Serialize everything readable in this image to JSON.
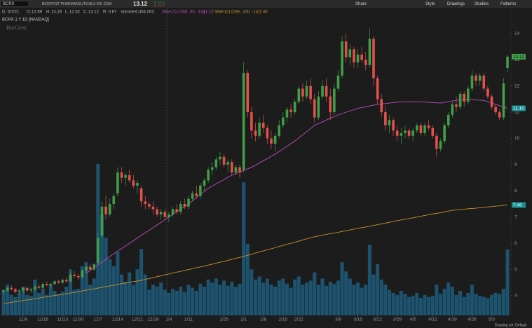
{
  "toolbar": {
    "symbol": "BCRX",
    "company": "BIOCRYST PHARMACEUTICALS INC COM",
    "bid": "B: 13.03",
    "ask": "A: 13.17",
    "buttons": [
      "Share",
      "Style",
      "Drawings",
      "Studies",
      "Patterns"
    ]
  },
  "info": {
    "date": "D: 5/7/21",
    "open_label": "O:",
    "high_label": "H:",
    "low_label": "L:",
    "close_label": "C:",
    "range": "R: 0.67",
    "volume": "6,454,063",
    "chart_label": "BCRX 1 Y 1D [NASDAQ]",
    "logo": "BioCrest",
    "drawing_set": "Drawing set: Default"
  },
  "chart_data": {
    "type": "candlestick",
    "up_color": "#3f9e47",
    "down_color": "#e2504c",
    "ylim": [
      3.25,
      14.96
    ],
    "yticks": [
      4,
      5,
      6,
      7,
      8,
      9,
      10,
      11,
      12,
      13,
      14
    ],
    "y2lim": [
      0,
      30000000
    ],
    "categories": [
      null,
      null,
      null,
      null,
      null,
      "11/9",
      null,
      null,
      null,
      null,
      "11/16",
      null,
      null,
      null,
      null,
      "11/23",
      null,
      null,
      null,
      "11/30",
      null,
      null,
      null,
      null,
      "12/7",
      null,
      null,
      null,
      null,
      "12/14",
      null,
      null,
      null,
      null,
      "12/21",
      null,
      null,
      null,
      "12/28",
      null,
      null,
      null,
      "1/4",
      null,
      null,
      null,
      null,
      "1/11",
      null,
      null,
      null,
      null,
      null,
      null,
      null,
      null,
      "1/25",
      null,
      null,
      null,
      null,
      "2/1",
      null,
      null,
      null,
      null,
      "2/8",
      null,
      null,
      null,
      null,
      "2/15",
      null,
      null,
      null,
      "2/22",
      null,
      null,
      null,
      null,
      null,
      null,
      null,
      null,
      null,
      "3/8",
      null,
      null,
      null,
      null,
      "3/15",
      null,
      null,
      null,
      null,
      "3/22",
      null,
      null,
      null,
      null,
      "3/29",
      null,
      null,
      null,
      "4/5",
      null,
      null,
      null,
      null,
      "4/12",
      null,
      null,
      null,
      null,
      "4/19",
      null,
      null,
      null,
      null,
      "4/26",
      null,
      null,
      null,
      null,
      "5/3",
      null,
      null,
      null,
      null
    ],
    "candles": [
      [
        4.15,
        4.25,
        4.05,
        4.2
      ],
      [
        4.2,
        4.35,
        4.15,
        4.3
      ],
      [
        4.3,
        4.4,
        4.2,
        4.25
      ],
      [
        4.25,
        4.3,
        4.1,
        4.15
      ],
      [
        4.15,
        4.25,
        4.05,
        4.2
      ],
      [
        4.2,
        4.35,
        4.1,
        4.3
      ],
      [
        4.3,
        4.35,
        4.15,
        4.2
      ],
      [
        4.2,
        4.3,
        4.1,
        4.25
      ],
      [
        4.25,
        4.4,
        4.2,
        4.35
      ],
      [
        4.35,
        4.45,
        4.25,
        4.3
      ],
      [
        4.3,
        4.5,
        4.25,
        4.45
      ],
      [
        4.45,
        4.55,
        4.35,
        4.4
      ],
      [
        4.4,
        4.5,
        4.3,
        4.45
      ],
      [
        4.45,
        4.6,
        4.4,
        4.55
      ],
      [
        4.55,
        4.6,
        4.45,
        4.5
      ],
      [
        4.5,
        4.65,
        4.45,
        4.6
      ],
      [
        4.6,
        4.7,
        4.5,
        4.55
      ],
      [
        4.55,
        4.9,
        4.5,
        4.8
      ],
      [
        4.8,
        4.95,
        4.7,
        4.75
      ],
      [
        4.75,
        4.85,
        4.6,
        4.7
      ],
      [
        4.7,
        5.0,
        4.65,
        4.95
      ],
      [
        4.95,
        5.15,
        4.85,
        5.1
      ],
      [
        5.1,
        5.2,
        4.95,
        5.0
      ],
      [
        5.0,
        5.25,
        4.95,
        5.2
      ],
      [
        5.25,
        6.4,
        5.2,
        6.2
      ],
      [
        6.3,
        7.6,
        6.2,
        7.4
      ],
      [
        7.4,
        7.8,
        6.9,
        7.1
      ],
      [
        7.1,
        7.7,
        7.0,
        7.5
      ],
      [
        7.5,
        7.9,
        7.3,
        7.8
      ],
      [
        7.9,
        8.9,
        7.8,
        8.7
      ],
      [
        8.7,
        8.9,
        8.3,
        8.5
      ],
      [
        8.5,
        8.7,
        8.2,
        8.6
      ],
      [
        8.6,
        8.8,
        8.3,
        8.4
      ],
      [
        8.4,
        8.6,
        8.1,
        8.2
      ],
      [
        8.2,
        8.4,
        7.9,
        8.3
      ],
      [
        8.1,
        8.2,
        7.4,
        7.6
      ],
      [
        7.6,
        7.8,
        7.3,
        7.5
      ],
      [
        7.5,
        7.6,
        7.3,
        7.4
      ],
      [
        7.4,
        7.6,
        7.1,
        7.3
      ],
      [
        7.3,
        7.4,
        7.0,
        7.1
      ],
      [
        7.1,
        7.3,
        6.9,
        7.2
      ],
      [
        7.2,
        7.3,
        6.95,
        7.0
      ],
      [
        7.0,
        7.2,
        6.8,
        7.1
      ],
      [
        7.1,
        7.4,
        7.0,
        7.3
      ],
      [
        7.3,
        7.5,
        7.1,
        7.2
      ],
      [
        7.2,
        7.6,
        7.1,
        7.5
      ],
      [
        7.5,
        7.7,
        7.3,
        7.4
      ],
      [
        7.4,
        7.8,
        7.3,
        7.7
      ],
      [
        7.7,
        8.0,
        7.6,
        7.9
      ],
      [
        7.9,
        8.2,
        7.7,
        7.8
      ],
      [
        7.8,
        8.3,
        7.7,
        8.2
      ],
      [
        8.2,
        8.5,
        8.0,
        8.4
      ],
      [
        8.4,
        8.9,
        8.3,
        8.8
      ],
      [
        8.8,
        9.1,
        8.6,
        8.9
      ],
      [
        8.9,
        9.3,
        8.8,
        9.2
      ],
      [
        9.2,
        9.5,
        9.0,
        9.3
      ],
      [
        9.3,
        9.4,
        8.9,
        9.0
      ],
      [
        9.0,
        9.2,
        8.7,
        9.1
      ],
      [
        9.1,
        9.2,
        8.6,
        8.7
      ],
      [
        8.7,
        9.0,
        8.6,
        8.9
      ],
      [
        8.9,
        9.0,
        8.5,
        8.7
      ],
      [
        8.8,
        12.9,
        8.7,
        12.5
      ],
      [
        12.5,
        12.6,
        10.8,
        11.0
      ],
      [
        11.0,
        11.2,
        10.0,
        10.3
      ],
      [
        10.3,
        10.6,
        9.9,
        10.1
      ],
      [
        10.1,
        10.8,
        10.0,
        10.6
      ],
      [
        10.6,
        10.9,
        10.2,
        10.4
      ],
      [
        10.4,
        10.5,
        9.8,
        10.0
      ],
      [
        10.0,
        10.3,
        9.6,
        9.8
      ],
      [
        9.8,
        10.2,
        9.5,
        10.1
      ],
      [
        10.1,
        10.7,
        10.0,
        10.5
      ],
      [
        10.5,
        11.0,
        10.4,
        10.8
      ],
      [
        10.8,
        11.2,
        10.6,
        11.1
      ],
      [
        11.1,
        11.3,
        10.8,
        11.0
      ],
      [
        11.0,
        11.5,
        10.9,
        11.4
      ],
      [
        11.4,
        12.0,
        11.3,
        11.9
      ],
      [
        11.9,
        12.1,
        11.4,
        11.6
      ],
      [
        11.6,
        12.2,
        11.5,
        12.0
      ],
      [
        12.0,
        12.3,
        11.3,
        11.5
      ],
      [
        11.5,
        11.7,
        10.6,
        10.8
      ],
      [
        10.8,
        11.8,
        10.7,
        11.6
      ],
      [
        11.6,
        12.2,
        11.5,
        12.0
      ],
      [
        12.0,
        12.3,
        11.4,
        11.6
      ],
      [
        11.6,
        11.9,
        10.7,
        11.0
      ],
      [
        11.0,
        12.1,
        10.9,
        11.9
      ],
      [
        11.9,
        12.6,
        11.8,
        12.4
      ],
      [
        12.4,
        13.9,
        12.3,
        13.7
      ],
      [
        13.7,
        14.0,
        12.9,
        13.1
      ],
      [
        13.1,
        13.6,
        12.8,
        13.4
      ],
      [
        13.4,
        13.5,
        12.7,
        12.9
      ],
      [
        12.9,
        13.4,
        12.7,
        13.2
      ],
      [
        13.2,
        13.5,
        12.9,
        13.0
      ],
      [
        13.0,
        13.3,
        12.6,
        12.8
      ],
      [
        12.8,
        14.2,
        12.7,
        13.8
      ],
      [
        13.8,
        13.9,
        12.0,
        12.3
      ],
      [
        12.3,
        12.4,
        11.3,
        11.5
      ],
      [
        11.5,
        11.7,
        10.8,
        11.0
      ],
      [
        11.0,
        11.2,
        10.3,
        10.5
      ],
      [
        10.5,
        10.9,
        10.2,
        10.7
      ],
      [
        10.7,
        10.8,
        10.1,
        10.3
      ],
      [
        10.3,
        10.5,
        9.9,
        10.1
      ],
      [
        10.1,
        10.4,
        9.8,
        10.2
      ],
      [
        10.2,
        10.5,
        10.0,
        10.3
      ],
      [
        10.3,
        10.4,
        10.0,
        10.1
      ],
      [
        10.1,
        10.4,
        9.9,
        10.3
      ],
      [
        10.3,
        10.6,
        10.2,
        10.5
      ],
      [
        10.5,
        10.6,
        10.1,
        10.2
      ],
      [
        10.2,
        10.6,
        10.1,
        10.5
      ],
      [
        10.5,
        10.7,
        10.3,
        10.4
      ],
      [
        10.4,
        10.5,
        10.0,
        10.1
      ],
      [
        10.1,
        10.2,
        9.3,
        9.6
      ],
      [
        9.6,
        10.0,
        9.5,
        9.9
      ],
      [
        9.9,
        10.6,
        9.8,
        10.5
      ],
      [
        10.5,
        11.0,
        10.4,
        10.9
      ],
      [
        10.9,
        11.4,
        10.8,
        11.3
      ],
      [
        11.3,
        11.6,
        11.0,
        11.2
      ],
      [
        11.2,
        11.8,
        11.1,
        11.7
      ],
      [
        11.7,
        11.8,
        11.2,
        11.4
      ],
      [
        11.4,
        12.0,
        11.3,
        11.9
      ],
      [
        11.9,
        12.6,
        11.8,
        12.4
      ],
      [
        12.4,
        12.5,
        12.0,
        12.2
      ],
      [
        12.2,
        12.5,
        12.0,
        12.4
      ],
      [
        12.4,
        12.5,
        11.8,
        11.9
      ],
      [
        11.9,
        12.0,
        11.5,
        11.6
      ],
      [
        11.6,
        11.7,
        11.1,
        11.2
      ],
      [
        11.2,
        11.3,
        10.9,
        11.0
      ],
      [
        11.0,
        11.1,
        10.7,
        10.8
      ],
      [
        10.8,
        12.3,
        10.7,
        12.1
      ],
      [
        12.69,
        13.19,
        12.52,
        13.12
      ]
    ],
    "series": [
      {
        "name": "Volume",
        "kind": "bar",
        "axis": "y2",
        "color": "#1d5d7e",
        "values": [
          2500000,
          3000000,
          2000000,
          1800000,
          2200000,
          2800000,
          2000000,
          1900000,
          3500000,
          2200000,
          2600000,
          2000000,
          3000000,
          2400000,
          2100000,
          2300000,
          2800000,
          4500000,
          2500000,
          2600000,
          4800000,
          5200000,
          3000000,
          3600000,
          14800000,
          9800000,
          7600000,
          5500000,
          4800000,
          6200000,
          4000000,
          3300000,
          4200000,
          3000000,
          4500000,
          6500000,
          4000000,
          2500000,
          3000000,
          2800000,
          3200000,
          2500000,
          2200000,
          2600000,
          2400000,
          2800000,
          2300000,
          3000000,
          2700000,
          2400000,
          3100000,
          2800000,
          3500000,
          3200000,
          3600000,
          3000000,
          3400000,
          2900000,
          3300000,
          2800000,
          3100000,
          13000000,
          7000000,
          4500000,
          3500000,
          3800000,
          3200000,
          3600000,
          3000000,
          2800000,
          3400000,
          3600000,
          3100000,
          2700000,
          3500000,
          3800000,
          3000000,
          3200000,
          3400000,
          4200000,
          3000000,
          3600000,
          2900000,
          3300000,
          3100000,
          3400000,
          5200000,
          4300000,
          3600000,
          3000000,
          3200000,
          2700000,
          3000000,
          6900000,
          4000000,
          5000000,
          3500000,
          3000000,
          2500000,
          2200000,
          2000000,
          2400000,
          2100000,
          1800000,
          1900000,
          2200000,
          1700000,
          2000000,
          1800000,
          1900000,
          3000000,
          2100000,
          2600000,
          3200000,
          2800000,
          2000000,
          2400000,
          1800000,
          2200000,
          3000000,
          2100000,
          1900000,
          1800000,
          1700000,
          2000000,
          2200000,
          2100000,
          2600000,
          6454063
        ]
      },
      {
        "name": "SMA (CLOSE, 50, -14)",
        "kind": "line",
        "color": "#c04ec0",
        "values": [
          null,
          null,
          null,
          null,
          null,
          null,
          null,
          null,
          null,
          null,
          null,
          null,
          null,
          null,
          null,
          null,
          null,
          null,
          null,
          null,
          null,
          4.85,
          4.96,
          5.07,
          5.18,
          5.28,
          5.39,
          5.5,
          5.6,
          5.7,
          5.8,
          5.9,
          6.0,
          6.1,
          6.2,
          6.3,
          6.4,
          6.5,
          6.6,
          6.7,
          6.8,
          6.9,
          7.0,
          7.1,
          7.2,
          7.3,
          7.4,
          7.5,
          7.62,
          7.74,
          7.86,
          7.98,
          8.1,
          8.18,
          8.27,
          8.35,
          8.43,
          8.52,
          8.6,
          8.66,
          8.72,
          8.78,
          8.84,
          8.9,
          8.98,
          9.07,
          9.15,
          9.23,
          9.32,
          9.4,
          9.5,
          9.6,
          9.7,
          9.8,
          9.9,
          10.02,
          10.14,
          10.26,
          10.38,
          10.5,
          10.57,
          10.63,
          10.7,
          10.77,
          10.83,
          10.9,
          10.95,
          11.0,
          11.05,
          11.1,
          11.15,
          11.18,
          11.21,
          11.24,
          11.27,
          11.3,
          11.32,
          11.33,
          11.35,
          11.37,
          11.38,
          11.4,
          11.4,
          11.4,
          11.4,
          11.4,
          11.4,
          11.39,
          11.38,
          11.37,
          11.36,
          11.35,
          11.38,
          11.4,
          11.43,
          11.45,
          11.48,
          11.5,
          11.49,
          11.48,
          11.47,
          11.46,
          11.45,
          11.4,
          11.35,
          11.3,
          11.25,
          11.2,
          11.15
        ]
      },
      {
        "name": "SMA (CLOSE, 200, -14)",
        "kind": "line",
        "color": "#c8922a",
        "values": [
          3.7,
          3.72,
          3.75,
          3.77,
          3.79,
          3.82,
          3.84,
          3.86,
          3.89,
          3.91,
          3.94,
          3.96,
          3.98,
          4.01,
          4.03,
          4.05,
          4.08,
          4.1,
          4.13,
          4.15,
          4.18,
          4.21,
          4.24,
          4.26,
          4.29,
          4.32,
          4.35,
          4.37,
          4.4,
          4.43,
          4.46,
          4.48,
          4.51,
          4.54,
          4.56,
          4.59,
          4.62,
          4.66,
          4.69,
          4.73,
          4.76,
          4.8,
          4.83,
          4.87,
          4.9,
          4.93,
          4.97,
          5.0,
          5.03,
          5.07,
          5.1,
          5.13,
          5.17,
          5.2,
          5.24,
          5.28,
          5.31,
          5.35,
          5.39,
          5.43,
          5.46,
          5.5,
          5.54,
          5.58,
          5.63,
          5.67,
          5.71,
          5.75,
          5.79,
          5.83,
          5.88,
          5.92,
          5.96,
          6.0,
          6.04,
          6.08,
          6.13,
          6.17,
          6.21,
          6.25,
          6.28,
          6.31,
          6.34,
          6.37,
          6.39,
          6.42,
          6.45,
          6.48,
          6.51,
          6.54,
          6.57,
          6.6,
          6.62,
          6.65,
          6.68,
          6.71,
          6.74,
          6.77,
          6.8,
          6.83,
          6.86,
          6.89,
          6.92,
          6.94,
          6.97,
          7.0,
          7.03,
          7.06,
          7.09,
          7.12,
          7.14,
          7.17,
          7.2,
          7.23,
          7.26,
          7.27,
          7.29,
          7.3,
          7.32,
          7.33,
          7.34,
          7.36,
          7.37,
          7.39,
          7.4,
          7.42,
          7.43,
          7.45,
          7.46
        ]
      }
    ]
  }
}
